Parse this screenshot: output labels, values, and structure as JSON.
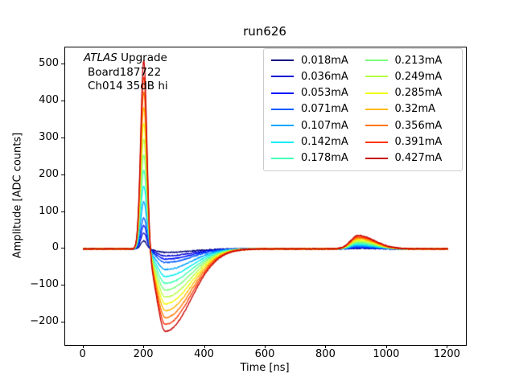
{
  "figure": {
    "title": "run626",
    "annotation": {
      "line1_italic": "ATLAS",
      "line1_rest": " Upgrade",
      "line2": "Board187722",
      "line3": "Ch014 35dB hi"
    }
  },
  "chart_data": {
    "type": "line",
    "title": "run626",
    "xlabel": "Time [ns]",
    "ylabel": "Amplitude [ADC counts]",
    "xlim": [
      -60,
      1260
    ],
    "ylim": [
      -260,
      545
    ],
    "x_ticks": [
      0,
      200,
      400,
      600,
      800,
      1000,
      1200
    ],
    "y_ticks": [
      -200,
      -100,
      0,
      100,
      200,
      300,
      400,
      500
    ],
    "grid": false,
    "legend": {
      "position": "upper right",
      "columns": 2,
      "column_major": true
    },
    "colormap": "jet",
    "series": [
      {
        "label": "0.018mA",
        "current_mA": 0.018,
        "color": "#000080",
        "peak_amplitude_adc": 22,
        "undershoot_min_adc": -9,
        "echo_peak_adc": 2
      },
      {
        "label": "0.036mA",
        "current_mA": 0.036,
        "color": "#0000d2",
        "peak_amplitude_adc": 44,
        "undershoot_min_adc": -19,
        "echo_peak_adc": 3
      },
      {
        "label": "0.053mA",
        "current_mA": 0.053,
        "color": "#0012ff",
        "peak_amplitude_adc": 64,
        "undershoot_min_adc": -28,
        "echo_peak_adc": 4
      },
      {
        "label": "0.071mA",
        "current_mA": 0.071,
        "color": "#005bff",
        "peak_amplitude_adc": 86,
        "undershoot_min_adc": -37,
        "echo_peak_adc": 6
      },
      {
        "label": "0.107mA",
        "current_mA": 0.107,
        "color": "#00a4ff",
        "peak_amplitude_adc": 130,
        "undershoot_min_adc": -56,
        "echo_peak_adc": 9
      },
      {
        "label": "0.142mA",
        "current_mA": 0.142,
        "color": "#06edf1",
        "peak_amplitude_adc": 173,
        "undershoot_min_adc": -74,
        "echo_peak_adc": 12
      },
      {
        "label": "0.178mA",
        "current_mA": 0.178,
        "color": "#41ffb6",
        "peak_amplitude_adc": 216,
        "undershoot_min_adc": -93,
        "echo_peak_adc": 15
      },
      {
        "label": "0.213mA",
        "current_mA": 0.213,
        "color": "#7bff7b",
        "peak_amplitude_adc": 259,
        "undershoot_min_adc": -111,
        "echo_peak_adc": 18
      },
      {
        "label": "0.249mA",
        "current_mA": 0.249,
        "color": "#b6ff41",
        "peak_amplitude_adc": 303,
        "undershoot_min_adc": -130,
        "echo_peak_adc": 21
      },
      {
        "label": "0.285mA",
        "current_mA": 0.285,
        "color": "#f1fc06",
        "peak_amplitude_adc": 346,
        "undershoot_min_adc": -149,
        "echo_peak_adc": 24
      },
      {
        "label": "0.32mA",
        "current_mA": 0.32,
        "color": "#ffb900",
        "peak_amplitude_adc": 389,
        "undershoot_min_adc": -167,
        "echo_peak_adc": 27
      },
      {
        "label": "0.356mA",
        "current_mA": 0.356,
        "color": "#ff7500",
        "peak_amplitude_adc": 433,
        "undershoot_min_adc": -186,
        "echo_peak_adc": 30
      },
      {
        "label": "0.391mA",
        "current_mA": 0.391,
        "color": "#ff3200",
        "peak_amplitude_adc": 475,
        "undershoot_min_adc": -204,
        "echo_peak_adc": 33
      },
      {
        "label": "0.427mA",
        "current_mA": 0.427,
        "color": "#c80000",
        "peak_amplitude_adc": 519,
        "undershoot_min_adc": -223,
        "echo_peak_adc": 36
      }
    ],
    "waveform_model": {
      "description": "baseline 0; sharp positive peak at ~200 ns; broad undershoot minimum at ~270 ns (~ -0.43 x peak); small echo bump at ~905 ns (~ +0.07 x peak); noisy traces",
      "t_start_ns": 0,
      "t_end_ns": 1200,
      "t_step_ns": 1.5,
      "peak_time_ns": 199,
      "peak_sigma_ns": 10,
      "undershoot_time_ns": 270,
      "undershoot_sigma_rise_ns": 28,
      "undershoot_sigma_fall_ns": 85,
      "undershoot_ratio": -0.43,
      "echo_time_ns": 905,
      "echo_sigma_rise_ns": 25,
      "echo_sigma_fall_ns": 55,
      "echo_ratio": 0.07,
      "noise_adc": 1.5
    }
  }
}
